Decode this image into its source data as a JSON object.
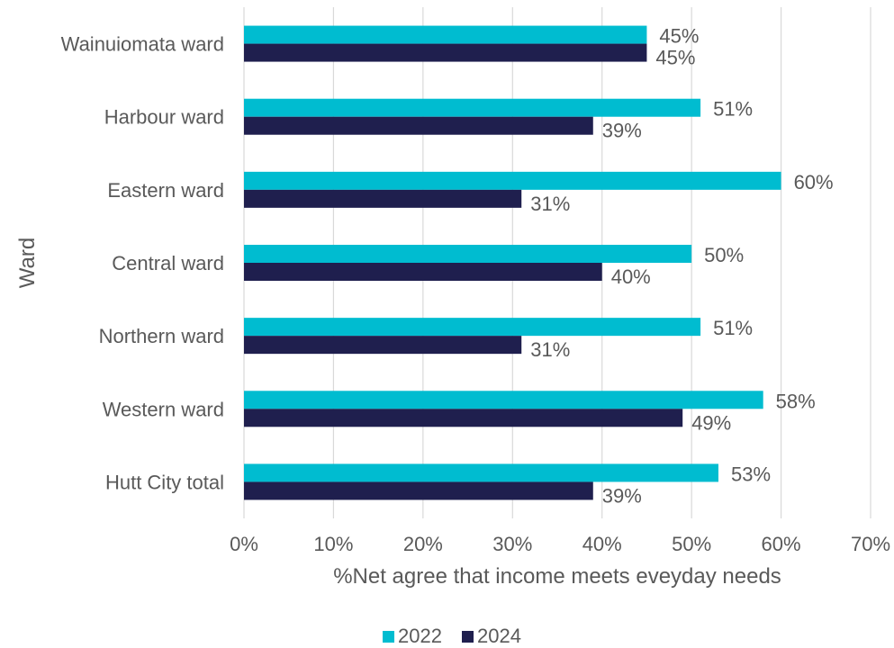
{
  "chart_data": {
    "type": "bar",
    "orientation": "horizontal",
    "title": "",
    "xlabel": "%Net agree that income meets eveyday needs",
    "ylabel": "Ward",
    "categories": [
      "Wainuiomata ward",
      "Harbour ward",
      "Eastern ward",
      "Central ward",
      "Northern ward",
      "Western ward",
      "Hutt City total"
    ],
    "series": [
      {
        "name": "2022",
        "values": [
          45,
          51,
          60,
          50,
          51,
          58,
          53
        ],
        "labels": [
          "45%",
          "51%",
          "60%",
          "50%",
          "51%",
          "58%",
          "53%"
        ],
        "color": "#00BCD0"
      },
      {
        "name": "2024",
        "values": [
          45,
          39,
          31,
          40,
          31,
          49,
          39
        ],
        "labels": [
          "45%",
          "39%",
          "31%",
          "40%",
          "31%",
          "49%",
          "39%"
        ],
        "color": "#1F1F4E"
      }
    ],
    "xlim": [
      0,
      70
    ],
    "xticks": [
      0,
      10,
      20,
      30,
      40,
      50,
      60,
      70
    ],
    "xtick_labels": [
      "0%",
      "10%",
      "20%",
      "30%",
      "40%",
      "50%",
      "60%",
      "70%"
    ],
    "grid": "vertical",
    "legend": "bottom"
  }
}
